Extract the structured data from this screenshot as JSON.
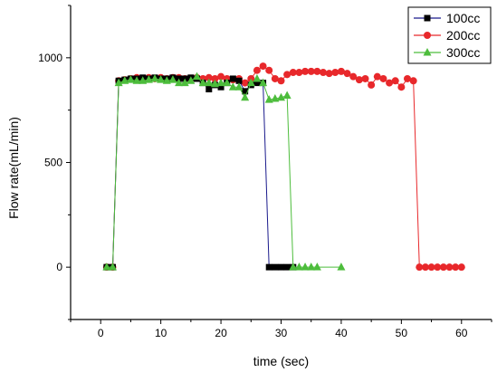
{
  "chart_data": {
    "type": "line",
    "xlabel": "time (sec)",
    "ylabel": "Flow rate(mL/min)",
    "xlim": [
      -5,
      65
    ],
    "ylim": [
      -250,
      1250
    ],
    "xticks": [
      0,
      10,
      20,
      30,
      40,
      50,
      60
    ],
    "yticks": [
      0,
      500,
      1000
    ],
    "grid": false,
    "legend_position": "top-right",
    "series": [
      {
        "name": "100cc",
        "color": "#000000",
        "line_color": "#1a1a8c",
        "marker": "square",
        "x": [
          1,
          2,
          3,
          4,
          5,
          6,
          7,
          8,
          9,
          10,
          11,
          12,
          13,
          14,
          15,
          16,
          17,
          18,
          19,
          20,
          21,
          22,
          23,
          24,
          25,
          26,
          27,
          28,
          29,
          30,
          31,
          32
        ],
        "y": [
          0,
          0,
          890,
          895,
          900,
          900,
          905,
          900,
          905,
          900,
          900,
          905,
          900,
          900,
          905,
          900,
          880,
          850,
          870,
          860,
          880,
          900,
          890,
          840,
          870,
          880,
          880,
          0,
          0,
          0,
          0,
          0
        ]
      },
      {
        "name": "200cc",
        "color": "#e8282b",
        "line_color": "#e8282b",
        "marker": "circle",
        "x": [
          1,
          2,
          3,
          4,
          5,
          6,
          7,
          8,
          9,
          10,
          11,
          12,
          13,
          14,
          15,
          16,
          17,
          18,
          19,
          20,
          21,
          22,
          23,
          24,
          25,
          26,
          27,
          28,
          29,
          30,
          31,
          32,
          33,
          34,
          35,
          36,
          37,
          38,
          39,
          40,
          41,
          42,
          43,
          44,
          45,
          46,
          47,
          48,
          49,
          50,
          51,
          52,
          53,
          54,
          55,
          56,
          57,
          58,
          59,
          60
        ],
        "y": [
          0,
          0,
          890,
          895,
          900,
          905,
          900,
          905,
          900,
          905,
          900,
          905,
          905,
          900,
          900,
          905,
          900,
          905,
          900,
          910,
          900,
          895,
          900,
          880,
          900,
          940,
          960,
          940,
          900,
          890,
          920,
          930,
          930,
          935,
          935,
          935,
          930,
          925,
          930,
          935,
          925,
          910,
          895,
          900,
          870,
          910,
          900,
          880,
          890,
          860,
          900,
          890,
          0,
          0,
          0,
          0,
          0,
          0,
          0,
          0
        ]
      },
      {
        "name": "300cc",
        "color": "#4dbd3c",
        "line_color": "#4dbd3c",
        "marker": "triangle",
        "x": [
          1,
          2,
          3,
          4,
          5,
          6,
          7,
          8,
          9,
          10,
          11,
          12,
          13,
          14,
          15,
          16,
          17,
          18,
          19,
          20,
          21,
          22,
          23,
          24,
          25,
          26,
          27,
          28,
          29,
          30,
          31,
          32,
          33,
          34,
          35,
          36,
          40
        ],
        "y": [
          0,
          0,
          880,
          890,
          895,
          890,
          890,
          895,
          900,
          895,
          890,
          895,
          880,
          880,
          890,
          910,
          880,
          880,
          875,
          880,
          880,
          860,
          860,
          810,
          880,
          900,
          880,
          800,
          805,
          810,
          820,
          0,
          0,
          0,
          0,
          0,
          0
        ]
      }
    ]
  }
}
